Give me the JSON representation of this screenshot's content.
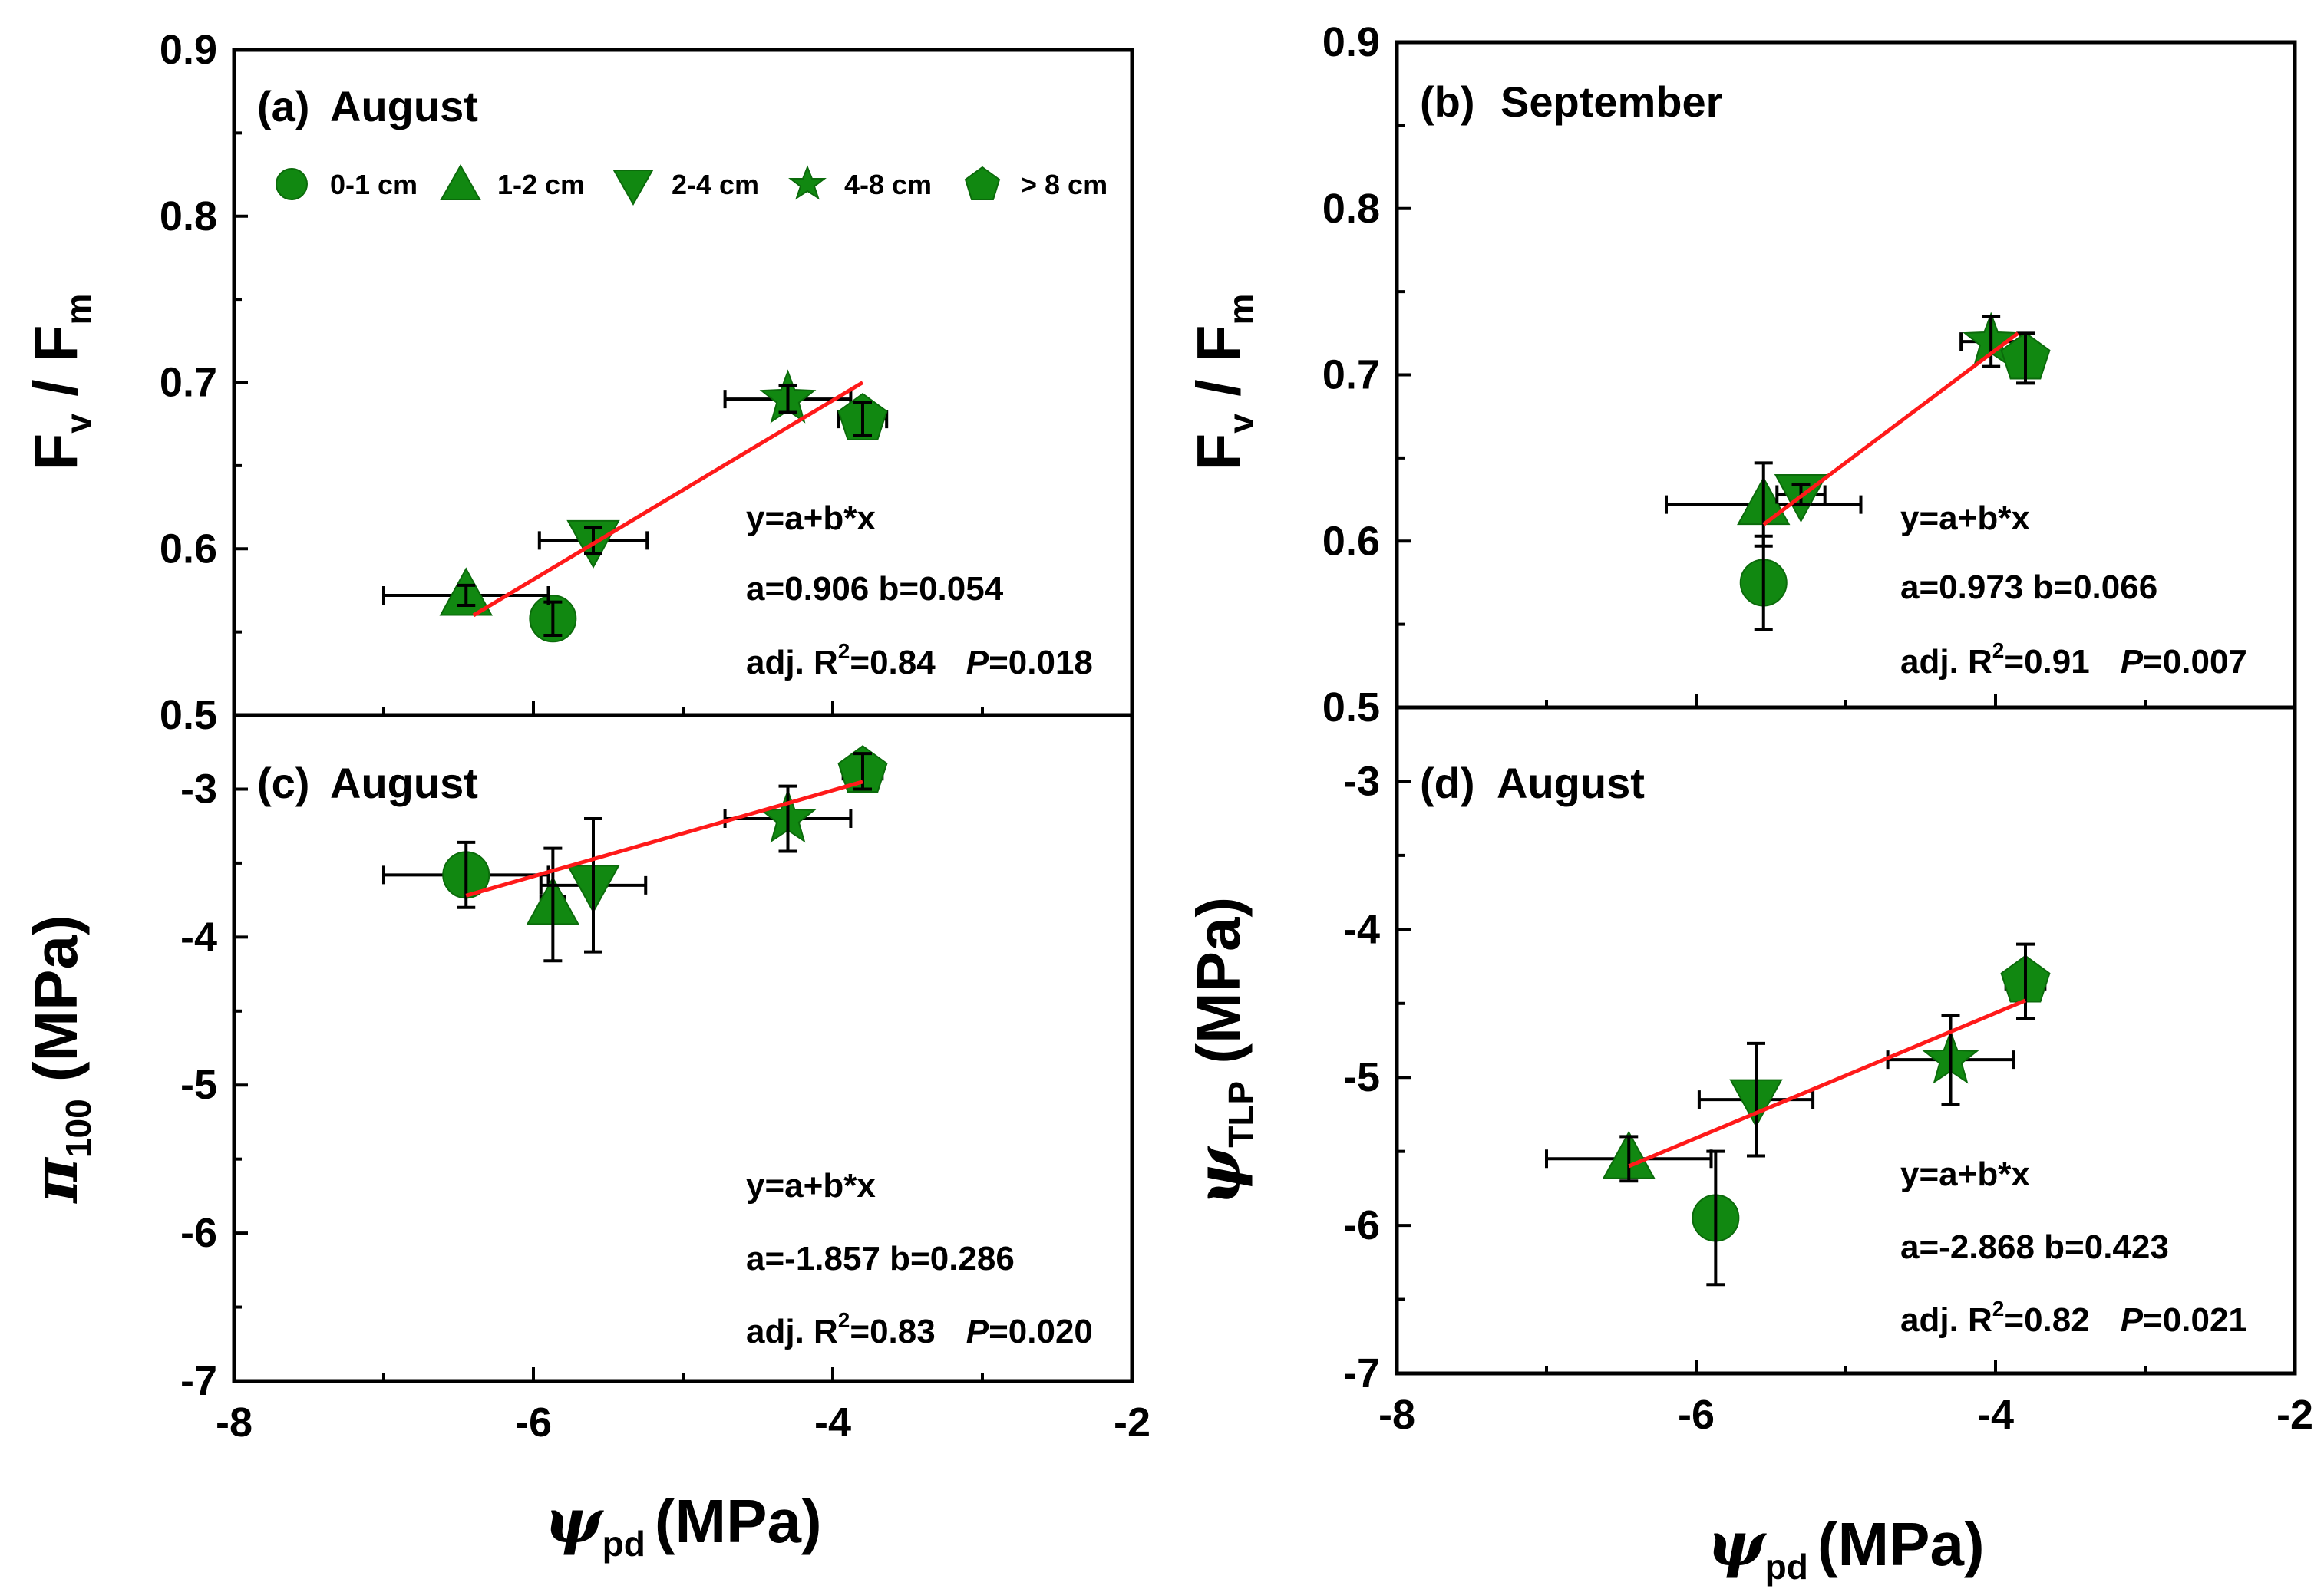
{
  "chart_data": [
    {
      "id": "a",
      "type": "scatter",
      "panel_label": "(a)",
      "title": "August",
      "xlabel": "ψpd (MPa)",
      "ylabel": "Fv / Fm",
      "xlim": [
        -8,
        -2
      ],
      "ylim": [
        0.5,
        0.9
      ],
      "xticks": [
        "-8",
        "-6",
        "-4",
        "-2"
      ],
      "yticks": [
        "0.5",
        "0.6",
        "0.7",
        "0.8",
        "0.9"
      ],
      "points": [
        {
          "series": "0-1 cm",
          "x": -5.87,
          "y": 0.558,
          "xerr": 0.07,
          "yerr": 0.01
        },
        {
          "series": "1-2 cm",
          "x": -6.45,
          "y": 0.572,
          "xerr": 0.55,
          "yerr": 0.006
        },
        {
          "series": "2-4 cm",
          "x": -5.6,
          "y": 0.605,
          "xerr": 0.36,
          "yerr": 0.008
        },
        {
          "series": "4-8 cm",
          "x": -4.3,
          "y": 0.69,
          "xerr": 0.42,
          "yerr": 0.008
        },
        {
          "series": "> 8 cm",
          "x": -3.8,
          "y": 0.678,
          "xerr": 0.16,
          "yerr": 0.01
        }
      ],
      "fit": {
        "x": [
          -6.4,
          -3.8
        ],
        "y": [
          0.56,
          0.7
        ]
      },
      "stats": [
        "y=a+b*x",
        "a=0.906 b=0.054"
      ],
      "r2_label": "adj. R",
      "r2_sup": "2",
      "r2_value": "=0.84",
      "p_label": "P",
      "p_value": "=0.018"
    },
    {
      "id": "b",
      "type": "scatter",
      "panel_label": "(b)",
      "title": "September",
      "xlabel": "ψpd (MPa)",
      "ylabel": "Fv / Fm",
      "xlim": [
        -8,
        -2
      ],
      "ylim": [
        0.5,
        0.9
      ],
      "xticks": [
        "-8",
        "-6",
        "-4",
        "-2"
      ],
      "yticks": [
        "0.5",
        "0.6",
        "0.7",
        "0.8",
        "0.9"
      ],
      "points": [
        {
          "series": "0-1 cm",
          "x": -5.55,
          "y": 0.575,
          "xerr": 0.05,
          "yerr": 0.028
        },
        {
          "series": "1-2 cm",
          "x": -5.55,
          "y": 0.622,
          "xerr": 0.65,
          "yerr": 0.025
        },
        {
          "series": "2-4 cm",
          "x": -5.3,
          "y": 0.628,
          "xerr": 0.16,
          "yerr": 0.006
        },
        {
          "series": "4-8 cm",
          "x": -4.03,
          "y": 0.72,
          "xerr": 0.2,
          "yerr": 0.015
        },
        {
          "series": "> 8 cm",
          "x": -3.8,
          "y": 0.71,
          "xerr": 0.06,
          "yerr": 0.015
        }
      ],
      "fit": {
        "x": [
          -5.55,
          -3.85
        ],
        "y": [
          0.61,
          0.725
        ]
      },
      "stats": [
        "y=a+b*x",
        "a=0.973 b=0.066"
      ],
      "r2_label": "adj. R",
      "r2_sup": "2",
      "r2_value": "=0.91",
      "p_label": "P",
      "p_value": "=0.007"
    },
    {
      "id": "c",
      "type": "scatter",
      "panel_label": "(c)",
      "title": "August",
      "xlabel": "ψpd (MPa)",
      "ylabel": "π100 (MPa)",
      "xlim": [
        -8,
        -2
      ],
      "ylim": [
        -7,
        -2.5
      ],
      "xticks": [
        "-8",
        "-6",
        "-4",
        "-2"
      ],
      "yticks": [
        "-7",
        "-6",
        "-5",
        "-4",
        "-3"
      ],
      "points": [
        {
          "series": "0-1 cm",
          "x": -6.45,
          "y": -3.58,
          "xerr": 0.55,
          "yerr": 0.22
        },
        {
          "series": "1-2 cm",
          "x": -5.87,
          "y": -3.78,
          "xerr": 0.08,
          "yerr": 0.38
        },
        {
          "series": "2-4 cm",
          "x": -5.6,
          "y": -3.65,
          "xerr": 0.35,
          "yerr": 0.45
        },
        {
          "series": "4-8 cm",
          "x": -4.3,
          "y": -3.2,
          "xerr": 0.42,
          "yerr": 0.22
        },
        {
          "series": "> 8 cm",
          "x": -3.8,
          "y": -2.88,
          "xerr": 0.13,
          "yerr": 0.12
        }
      ],
      "fit": {
        "x": [
          -6.45,
          -3.8
        ],
        "y": [
          -3.72,
          -2.95
        ]
      },
      "stats": [
        "y=a+b*x",
        "a=-1.857 b=0.286"
      ],
      "r2_label": "adj. R",
      "r2_sup": "2",
      "r2_value": "=0.83",
      "p_label": "P",
      "p_value": "=0.020"
    },
    {
      "id": "d",
      "type": "scatter",
      "panel_label": "(d)",
      "title": "August",
      "xlabel": "ψpd (MPa)",
      "ylabel": "ψTLP (MPa)",
      "xlim": [
        -8,
        -2
      ],
      "ylim": [
        -7,
        -2.5
      ],
      "xticks": [
        "-8",
        "-6",
        "-4",
        "-2"
      ],
      "yticks": [
        "-7",
        "-6",
        "-5",
        "-4",
        "-3"
      ],
      "points": [
        {
          "series": "0-1 cm",
          "x": -5.87,
          "y": -5.95,
          "xerr": 0.05,
          "yerr": 0.45
        },
        {
          "series": "1-2 cm",
          "x": -6.45,
          "y": -5.55,
          "xerr": 0.55,
          "yerr": 0.15
        },
        {
          "series": "2-4 cm",
          "x": -5.6,
          "y": -5.15,
          "xerr": 0.38,
          "yerr": 0.38
        },
        {
          "series": "4-8 cm",
          "x": -4.3,
          "y": -4.88,
          "xerr": 0.42,
          "yerr": 0.3
        },
        {
          "series": "> 8 cm",
          "x": -3.8,
          "y": -4.35,
          "xerr": 0.13,
          "yerr": 0.25
        }
      ],
      "fit": {
        "x": [
          -6.45,
          -3.8
        ],
        "y": [
          -5.6,
          -4.48
        ]
      },
      "stats": [
        "y=a+b*x",
        "a=-2.868 b=0.423"
      ],
      "r2_label": "adj. R",
      "r2_sup": "2",
      "r2_value": "=0.82",
      "p_label": "P",
      "p_value": "=0.021"
    }
  ],
  "legend": {
    "items": [
      {
        "label": "0-1 cm",
        "shape": "circle"
      },
      {
        "label": "1-2 cm",
        "shape": "triangle-up"
      },
      {
        "label": "2-4 cm",
        "shape": "triangle-down"
      },
      {
        "label": "4-8 cm",
        "shape": "star"
      },
      {
        "label": "> 8 cm",
        "shape": "pentagon"
      }
    ]
  },
  "axis_titles": {
    "fvfm_main": "F",
    "fvfm_sub_v": "v",
    "fvfm_slash": " / F",
    "fvfm_sub_m": "m",
    "pi_symbol": "π",
    "pi_sub": "100",
    "psi_symbol": "ψ",
    "tlp_sub": "TLP",
    "pd_sub": "pd",
    "mpa_unit": " (MPa)",
    "mpa_unit_x": "(MPa)"
  },
  "colors": {
    "marker": "#118811",
    "fit": "#ff1a1a",
    "axis": "#000000"
  }
}
